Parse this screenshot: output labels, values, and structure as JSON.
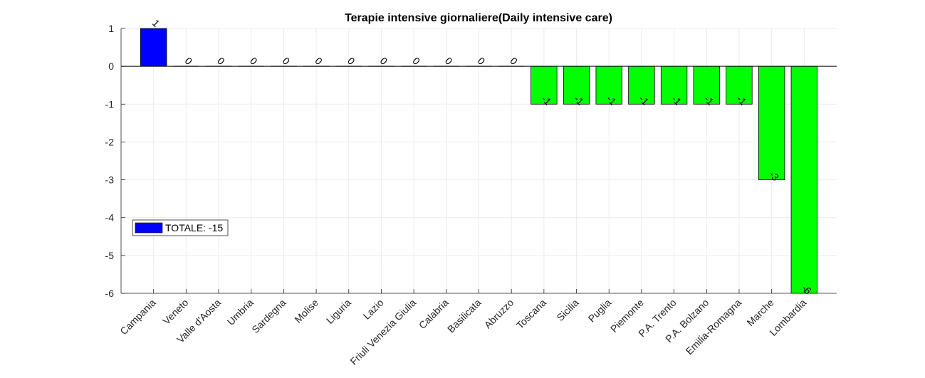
{
  "chart_data": {
    "type": "bar",
    "title": "Terapie intensive giornaliere(Daily intensive care)",
    "xlabel": "",
    "ylabel": "",
    "ylim": [
      -6,
      1
    ],
    "yticks": [
      "1",
      "0",
      "-1",
      "-2",
      "-3",
      "-4",
      "-5",
      "-6"
    ],
    "grid": true,
    "categories": [
      "Campania",
      "Veneto",
      "Valle d'Aosta",
      "Umbria",
      "Sardegna",
      "Molise",
      "Liguria",
      "Lazio",
      "Friuli Venezia Giulia",
      "Calabria",
      "Basilicata",
      "Abruzzo",
      "Toscana",
      "Sicilia",
      "Puglia",
      "Piemonte",
      "P.A. Trento",
      "P.A. Bolzano",
      "Emilia-Romagna",
      "Marche",
      "Lombardia"
    ],
    "values": [
      1,
      0,
      0,
      0,
      0,
      0,
      0,
      0,
      0,
      0,
      0,
      0,
      -1,
      -1,
      -1,
      -1,
      -1,
      -1,
      -1,
      -3,
      -6
    ],
    "data_labels": [
      "1",
      "0",
      "0",
      "0",
      "0",
      "0",
      "0",
      "0",
      "0",
      "0",
      "0",
      "0",
      "-1",
      "-1",
      "-1",
      "-1",
      "-1",
      "-1",
      "-1",
      "-3",
      "-6"
    ],
    "colors": {
      "positive": "#0000ff",
      "negative": "#00ff00"
    },
    "legend": {
      "label": "TOTALE: -15",
      "color": "#0000ff",
      "placement": "left"
    }
  }
}
